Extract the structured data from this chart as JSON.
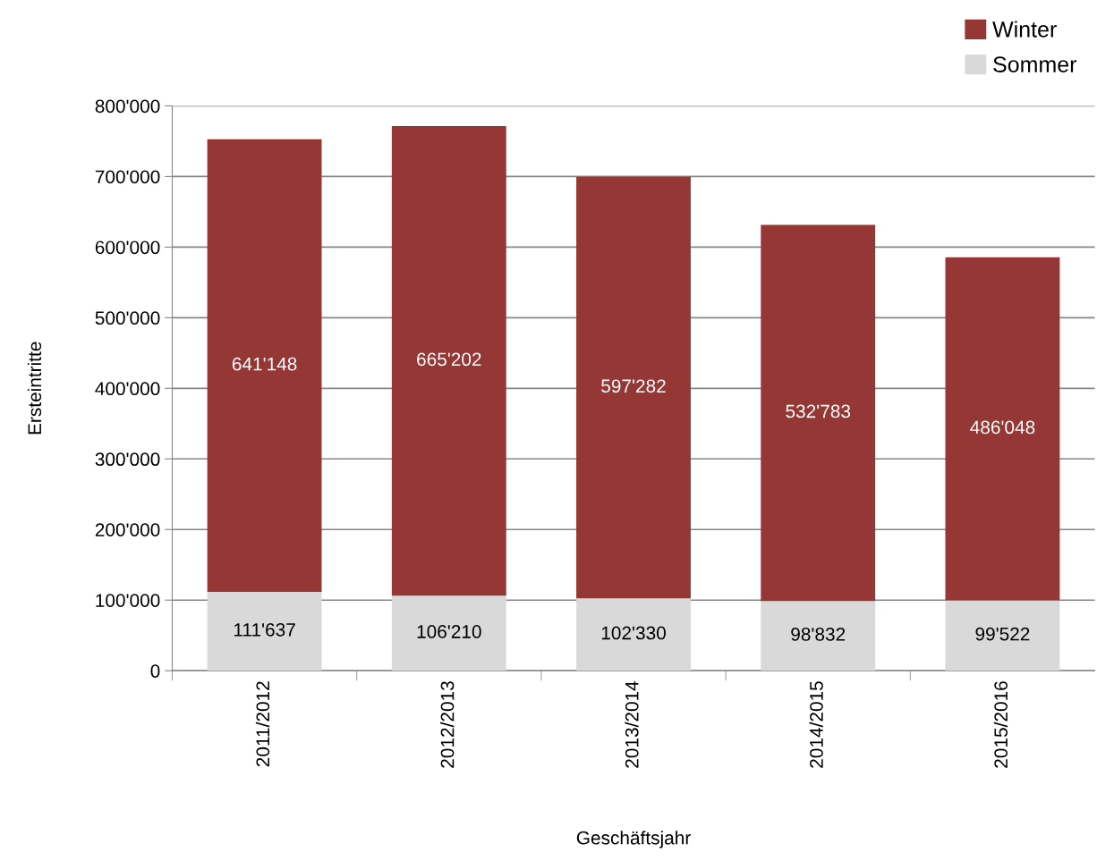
{
  "chart_data": {
    "type": "bar",
    "stacked": true,
    "xlabel": "Geschäftsjahr",
    "ylabel": "Ersteintritte",
    "categories": [
      "2011/2012",
      "2012/2013",
      "2013/2014",
      "2014/2015",
      "2015/2016"
    ],
    "series": [
      {
        "name": "Sommer",
        "color": "#d9d9d9",
        "values": [
          111637,
          106210,
          102330,
          98832,
          99522
        ],
        "value_labels": [
          "111'637",
          "106'210",
          "102'330",
          "98'832",
          "99'522"
        ]
      },
      {
        "name": "Winter",
        "color": "#953735",
        "values": [
          641148,
          665202,
          597282,
          532783,
          486048
        ],
        "value_labels": [
          "641'148",
          "665'202",
          "597'282",
          "532'783",
          "486'048"
        ]
      }
    ],
    "ylim": [
      0,
      800000
    ],
    "yticks": [
      {
        "value": 0,
        "label": "0"
      },
      {
        "value": 100000,
        "label": "100'000"
      },
      {
        "value": 200000,
        "label": "200'000"
      },
      {
        "value": 300000,
        "label": "300'000"
      },
      {
        "value": 400000,
        "label": "400'000"
      },
      {
        "value": 500000,
        "label": "500'000"
      },
      {
        "value": 600000,
        "label": "600'000"
      },
      {
        "value": 700000,
        "label": "700'000"
      },
      {
        "value": 800000,
        "label": "800'000"
      }
    ],
    "grid": "y",
    "legend": "top right"
  }
}
